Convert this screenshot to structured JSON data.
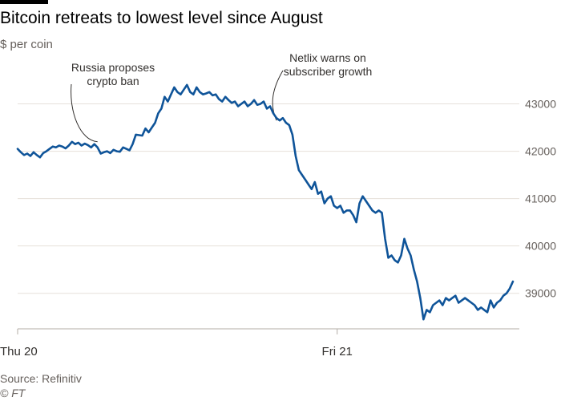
{
  "header": {
    "title": "Bitcoin retreats to lowest level since August",
    "subtitle": "$ per coin"
  },
  "footer": {
    "source": "Source: Refinitiv",
    "credit": "© FT"
  },
  "chart_data": {
    "type": "line",
    "title": "Bitcoin retreats to lowest level since August",
    "ylabel": "$ per coin",
    "xlabel": "",
    "ylim": [
      38250,
      43500
    ],
    "xlim": [
      0,
      1.57
    ],
    "y_ticks": [
      39000,
      40000,
      41000,
      42000,
      43000
    ],
    "x_ticks": [
      {
        "value": 0,
        "label": "Thu 20"
      },
      {
        "value": 1,
        "label": "Fri 21"
      }
    ],
    "grid": true,
    "line_color": "#0f5499",
    "annotations": [
      {
        "lines": [
          "Russia proposes",
          "crypto ban"
        ],
        "x": 0.25,
        "y": 42200
      },
      {
        "lines": [
          "Netlix warns on",
          "subscriber growth"
        ],
        "x": 0.81,
        "y": 42650
      }
    ],
    "series": [
      {
        "x": [
          0.0,
          0.01,
          0.02,
          0.03,
          0.04,
          0.05,
          0.06,
          0.07,
          0.08,
          0.09,
          0.1,
          0.11,
          0.12,
          0.13,
          0.14,
          0.15,
          0.16,
          0.17,
          0.18,
          0.19,
          0.2,
          0.21,
          0.22,
          0.23,
          0.24,
          0.25,
          0.26,
          0.27,
          0.28,
          0.29,
          0.3,
          0.31,
          0.32,
          0.33,
          0.34,
          0.35,
          0.36,
          0.37,
          0.38,
          0.39,
          0.4,
          0.41,
          0.42,
          0.43,
          0.44,
          0.45,
          0.46,
          0.47,
          0.48,
          0.49,
          0.5,
          0.51,
          0.52,
          0.53,
          0.54,
          0.55,
          0.56,
          0.57,
          0.58,
          0.59,
          0.6,
          0.61,
          0.62,
          0.63,
          0.64,
          0.65,
          0.66,
          0.67,
          0.68,
          0.69,
          0.7,
          0.71,
          0.72,
          0.73,
          0.74,
          0.75,
          0.76,
          0.77,
          0.78,
          0.79,
          0.8,
          0.81,
          0.82,
          0.83,
          0.84,
          0.85,
          0.86,
          0.87,
          0.88,
          0.89,
          0.9,
          0.91,
          0.92,
          0.93,
          0.94,
          0.95,
          0.96,
          0.97,
          0.98,
          0.99,
          1.0,
          1.01,
          1.02,
          1.03,
          1.04,
          1.05,
          1.06,
          1.07,
          1.08,
          1.09,
          1.1,
          1.11,
          1.12,
          1.13,
          1.14,
          1.15,
          1.16,
          1.17,
          1.18,
          1.19,
          1.2,
          1.21,
          1.22,
          1.23,
          1.24,
          1.25,
          1.26,
          1.27,
          1.28,
          1.29,
          1.3,
          1.31,
          1.32,
          1.33,
          1.34,
          1.35,
          1.36,
          1.37,
          1.38,
          1.39,
          1.4,
          1.41,
          1.42,
          1.43,
          1.44,
          1.45,
          1.46,
          1.47,
          1.48,
          1.49,
          1.5,
          1.51,
          1.52,
          1.53,
          1.54,
          1.55
        ],
        "values": [
          42050,
          41980,
          41920,
          41950,
          41900,
          41980,
          41920,
          41870,
          41960,
          42000,
          42050,
          42100,
          42080,
          42120,
          42100,
          42060,
          42120,
          42200,
          42150,
          42180,
          42120,
          42160,
          42130,
          42080,
          42150,
          42080,
          41950,
          41980,
          42000,
          41960,
          42030,
          42000,
          41990,
          42080,
          42050,
          42020,
          42150,
          42350,
          42340,
          42330,
          42480,
          42400,
          42500,
          42600,
          42800,
          42900,
          43150,
          43050,
          43200,
          43350,
          43250,
          43200,
          43300,
          43400,
          43250,
          43200,
          43350,
          43250,
          43200,
          43220,
          43250,
          43180,
          43200,
          43100,
          43050,
          43150,
          43080,
          43020,
          43050,
          42950,
          43000,
          43050,
          42950,
          43000,
          43080,
          42980,
          43000,
          43050,
          42900,
          42950,
          42800,
          42700,
          42650,
          42700,
          42600,
          42550,
          42350,
          41900,
          41600,
          41500,
          41400,
          41300,
          41200,
          41350,
          41100,
          41150,
          40900,
          41000,
          41050,
          40850,
          40800,
          40850,
          40700,
          40750,
          40750,
          40650,
          40500,
          40900,
          41050,
          40950,
          40850,
          40750,
          40700,
          40750,
          40700,
          40150,
          39750,
          39800,
          39700,
          39650,
          39800,
          40150,
          39950,
          39800,
          39500,
          39250,
          38900,
          38450,
          38650,
          38600,
          38750,
          38800,
          38850,
          38750,
          38900,
          38850,
          38900,
          38950,
          38800,
          38850,
          38900,
          38850,
          38800,
          38750,
          38650,
          38700,
          38650,
          38600,
          38850,
          38700,
          38800,
          38850,
          38950,
          39000,
          39100,
          39250
        ]
      }
    ]
  }
}
